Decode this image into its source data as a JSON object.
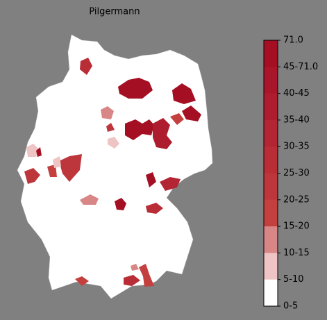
{
  "title": "Pilgermann",
  "legend": {
    "labels": [
      "71.0",
      "45-71.0",
      "40-45",
      "35-40",
      "30-35",
      "25-30",
      "20-25",
      "15-20",
      "10-15",
      "5-10",
      "0-5"
    ],
    "colors": [
      "#a50f24",
      "#a9152b",
      "#ae1d2f",
      "#b32533",
      "#b82d36",
      "#bd363b",
      "#c3403f",
      "#d98686",
      "#efc4c4",
      "#ffffff"
    ]
  }
}
